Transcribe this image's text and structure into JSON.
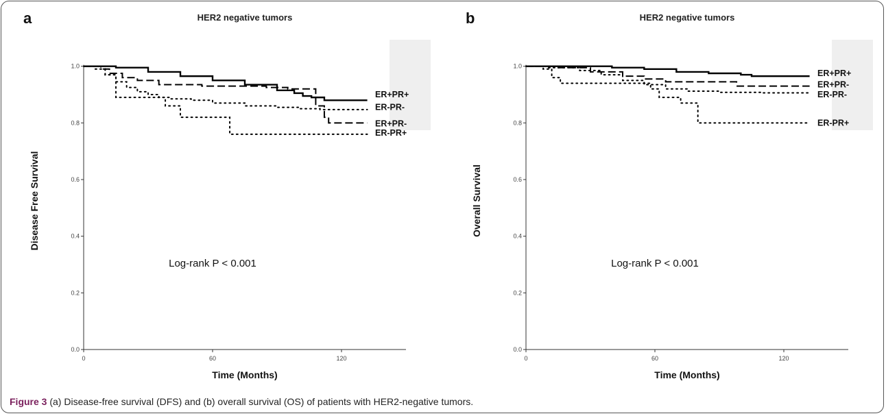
{
  "figure": {
    "caption_label": "Figure 3",
    "caption_text": " (a) Disease-free survival (DFS) and (b) overall survival (OS) of patients with HER2-negative tumors."
  },
  "chart_data": [
    {
      "type": "line",
      "panel_label": "a",
      "title": "HER2 negative tumors",
      "xlabel": "Time (Months)",
      "ylabel": "Disease Free Survival",
      "xlim": [
        0,
        150
      ],
      "ylim": [
        0.0,
        1.05
      ],
      "xticks": [
        "0",
        "60",
        "120"
      ],
      "yticks": [
        "0.0",
        "0.2",
        "0.4",
        "0.6",
        "0.8",
        "1.0"
      ],
      "annotation": "Log-rank P < 0.001",
      "series": [
        {
          "name": "ER+PR+",
          "style": "solid",
          "label_y": 0.9,
          "points": [
            [
              0,
              1.0
            ],
            [
              15,
              0.995
            ],
            [
              30,
              0.98
            ],
            [
              45,
              0.965
            ],
            [
              60,
              0.95
            ],
            [
              75,
              0.935
            ],
            [
              90,
              0.915
            ],
            [
              98,
              0.905
            ],
            [
              102,
              0.895
            ],
            [
              106,
              0.89
            ],
            [
              112,
              0.88
            ],
            [
              132,
              0.88
            ]
          ]
        },
        {
          "name": "ER-PR-",
          "style": "dotted",
          "label_y": 0.855,
          "points": [
            [
              0,
              1.0
            ],
            [
              5,
              0.99
            ],
            [
              10,
              0.97
            ],
            [
              15,
              0.945
            ],
            [
              20,
              0.925
            ],
            [
              25,
              0.91
            ],
            [
              30,
              0.9
            ],
            [
              35,
              0.89
            ],
            [
              40,
              0.885
            ],
            [
              50,
              0.88
            ],
            [
              60,
              0.87
            ],
            [
              75,
              0.86
            ],
            [
              90,
              0.855
            ],
            [
              100,
              0.85
            ],
            [
              110,
              0.847
            ],
            [
              132,
              0.847
            ]
          ]
        },
        {
          "name": "ER+PR-",
          "style": "dashed",
          "label_y": 0.797,
          "points": [
            [
              0,
              1.0
            ],
            [
              8,
              0.99
            ],
            [
              12,
              0.975
            ],
            [
              18,
              0.96
            ],
            [
              25,
              0.95
            ],
            [
              35,
              0.935
            ],
            [
              55,
              0.93
            ],
            [
              70,
              0.93
            ],
            [
              85,
              0.925
            ],
            [
              95,
              0.92
            ],
            [
              108,
              0.86
            ],
            [
              112,
              0.82
            ],
            [
              114,
              0.8
            ],
            [
              132,
              0.8
            ]
          ]
        },
        {
          "name": "ER-PR+",
          "style": "dotted",
          "label_y": 0.765,
          "points": [
            [
              0,
              1.0
            ],
            [
              10,
              0.97
            ],
            [
              15,
              0.89
            ],
            [
              35,
              0.89
            ],
            [
              38,
              0.86
            ],
            [
              45,
              0.82
            ],
            [
              66,
              0.82
            ],
            [
              68,
              0.76
            ],
            [
              132,
              0.76
            ]
          ]
        }
      ]
    },
    {
      "type": "line",
      "panel_label": "b",
      "title": "HER2 negative tumors",
      "xlabel": "Time (Months)",
      "ylabel": "Overall Survival",
      "xlim": [
        0,
        150
      ],
      "ylim": [
        0.0,
        1.05
      ],
      "xticks": [
        "0",
        "60",
        "120"
      ],
      "yticks": [
        "0.0",
        "0.2",
        "0.4",
        "0.6",
        "0.8",
        "1.0"
      ],
      "annotation": "Log-rank P < 0.001",
      "series": [
        {
          "name": "ER+PR+",
          "style": "solid",
          "label_y": 0.975,
          "points": [
            [
              0,
              1.0
            ],
            [
              20,
              1.0
            ],
            [
              40,
              0.995
            ],
            [
              55,
              0.99
            ],
            [
              70,
              0.98
            ],
            [
              85,
              0.975
            ],
            [
              100,
              0.97
            ],
            [
              105,
              0.965
            ],
            [
              132,
              0.965
            ]
          ]
        },
        {
          "name": "ER+PR-",
          "style": "dashed",
          "label_y": 0.935,
          "points": [
            [
              0,
              1.0
            ],
            [
              15,
              0.995
            ],
            [
              30,
              0.98
            ],
            [
              45,
              0.965
            ],
            [
              55,
              0.955
            ],
            [
              65,
              0.945
            ],
            [
              75,
              0.945
            ],
            [
              85,
              0.945
            ],
            [
              98,
              0.93
            ],
            [
              132,
              0.93
            ]
          ]
        },
        {
          "name": "ER-PR-",
          "style": "dotted",
          "label_y": 0.9,
          "points": [
            [
              0,
              1.0
            ],
            [
              10,
              0.995
            ],
            [
              25,
              0.985
            ],
            [
              35,
              0.97
            ],
            [
              45,
              0.95
            ],
            [
              55,
              0.935
            ],
            [
              65,
              0.92
            ],
            [
              75,
              0.912
            ],
            [
              90,
              0.908
            ],
            [
              110,
              0.906
            ],
            [
              132,
              0.905
            ]
          ]
        },
        {
          "name": "ER-PR+",
          "style": "dotted",
          "label_y": 0.8,
          "points": [
            [
              0,
              1.0
            ],
            [
              8,
              0.99
            ],
            [
              12,
              0.96
            ],
            [
              16,
              0.94
            ],
            [
              40,
              0.94
            ],
            [
              58,
              0.92
            ],
            [
              62,
              0.89
            ],
            [
              70,
              0.89
            ],
            [
              72,
              0.87
            ],
            [
              78,
              0.87
            ],
            [
              80,
              0.8
            ],
            [
              132,
              0.8
            ]
          ]
        }
      ]
    }
  ]
}
